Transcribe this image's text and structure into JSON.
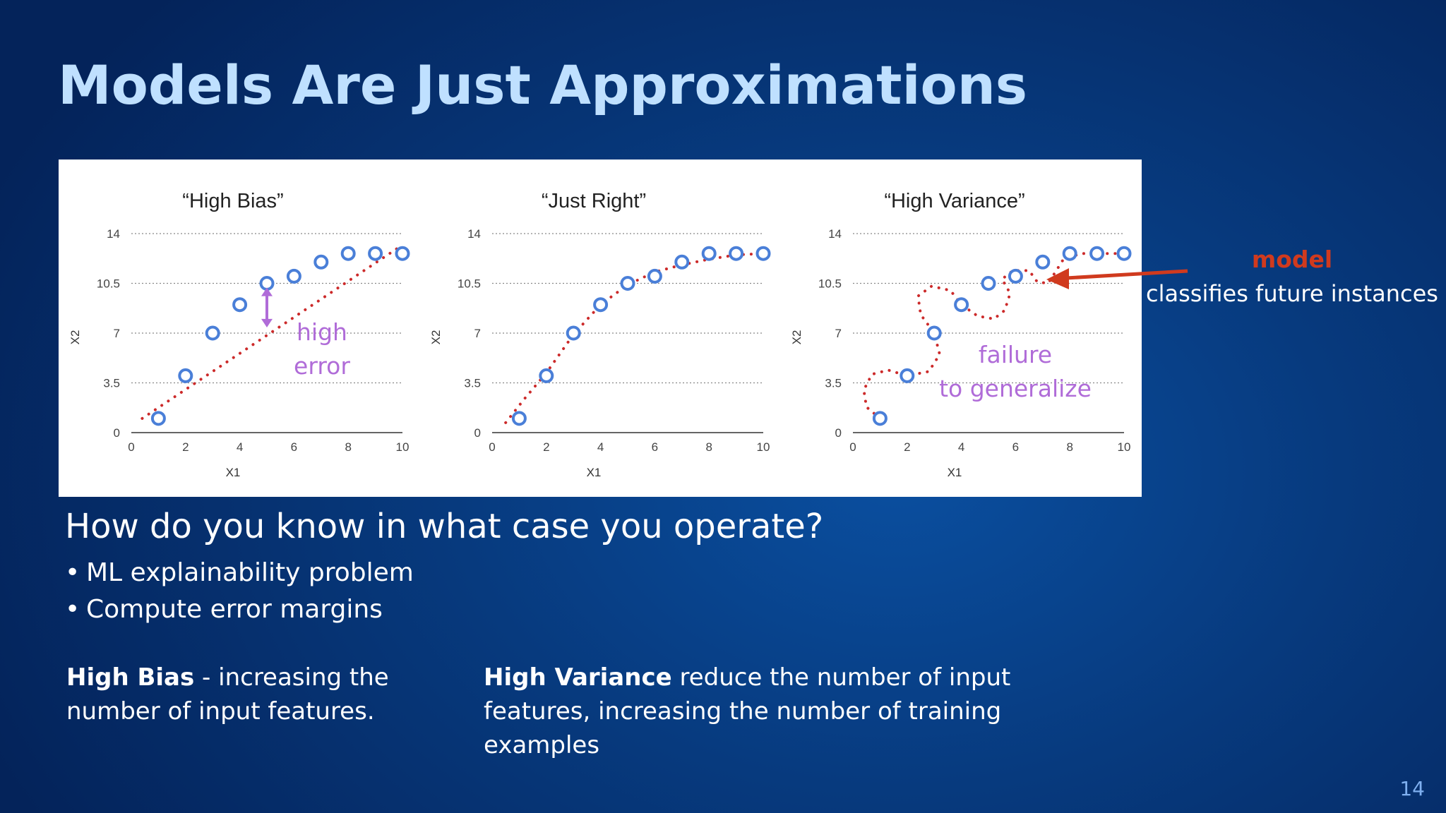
{
  "slide": {
    "title": "Models Are Just Approximations",
    "question": "How do you know in what case you operate?",
    "bullets": [
      "ML explainability problem",
      "Compute error margins"
    ],
    "high_bias_label": "High Bias",
    "high_bias_text": " -  increasing the number of input features.",
    "high_variance_label": "High Variance",
    "high_variance_text": " reduce the number of input features, increasing the number of training examples",
    "page_number": "14",
    "model_label": "model",
    "model_caption": "classifies future instances"
  },
  "colors": {
    "point": "#4a7fd8",
    "fit": "#cc2a2a",
    "annotation": "#b06cd8",
    "model": "#d03a1e"
  },
  "chart_data": [
    {
      "type": "scatter",
      "title": "“High Bias”",
      "xlabel": "X1",
      "ylabel": "X2",
      "xlim": [
        0,
        10
      ],
      "ylim": [
        0,
        14
      ],
      "xticks": [
        "0",
        "2",
        "4",
        "6",
        "8",
        "10"
      ],
      "yticks": [
        "0",
        "3.5",
        "7",
        "10.5",
        "14"
      ],
      "grid": true,
      "points": [
        [
          1,
          1
        ],
        [
          2,
          4
        ],
        [
          3,
          7
        ],
        [
          4,
          9
        ],
        [
          5,
          10.5
        ],
        [
          6,
          11
        ],
        [
          7,
          12
        ],
        [
          8,
          12.6
        ],
        [
          9,
          12.6
        ],
        [
          10,
          12.6
        ]
      ],
      "fit": [
        [
          0.4,
          1
        ],
        [
          10,
          13.2
        ]
      ],
      "annotation": [
        "high",
        "error"
      ]
    },
    {
      "type": "scatter",
      "title": "“Just Right”",
      "xlabel": "X1",
      "ylabel": "X2",
      "xlim": [
        0,
        10
      ],
      "ylim": [
        0,
        14
      ],
      "xticks": [
        "0",
        "2",
        "4",
        "6",
        "8",
        "10"
      ],
      "yticks": [
        "0",
        "3.5",
        "7",
        "10.5",
        "14"
      ],
      "grid": true,
      "points": [
        [
          1,
          1
        ],
        [
          2,
          4
        ],
        [
          3,
          7
        ],
        [
          4,
          9
        ],
        [
          5,
          10.5
        ],
        [
          6,
          11
        ],
        [
          7,
          12
        ],
        [
          8,
          12.6
        ],
        [
          9,
          12.6
        ],
        [
          10,
          12.6
        ]
      ],
      "fit": [
        [
          0.5,
          0.7
        ],
        [
          1.2,
          2.4
        ],
        [
          2,
          4.2
        ],
        [
          3,
          6.9
        ],
        [
          4,
          9
        ],
        [
          5,
          10.4
        ],
        [
          6,
          11.3
        ],
        [
          7,
          11.8
        ],
        [
          8,
          12.2
        ],
        [
          9,
          12.5
        ],
        [
          10,
          12.6
        ]
      ],
      "annotation": []
    },
    {
      "type": "scatter",
      "title": "“High Variance”",
      "xlabel": "X1",
      "ylabel": "X2",
      "xlim": [
        0,
        10
      ],
      "ylim": [
        0,
        14
      ],
      "xticks": [
        "0",
        "2",
        "4",
        "6",
        "8",
        "10"
      ],
      "yticks": [
        "0",
        "3.5",
        "7",
        "10.5",
        "14"
      ],
      "grid": true,
      "points": [
        [
          1,
          1
        ],
        [
          2,
          4
        ],
        [
          3,
          7
        ],
        [
          4,
          9
        ],
        [
          5,
          10.5
        ],
        [
          6,
          11
        ],
        [
          7,
          12
        ],
        [
          8,
          12.6
        ],
        [
          9,
          12.6
        ],
        [
          10,
          12.6
        ]
      ],
      "fit": [
        [
          1,
          1
        ],
        [
          0.5,
          1.8
        ],
        [
          0.4,
          3
        ],
        [
          0.7,
          4.1
        ],
        [
          1.3,
          4.4
        ],
        [
          2,
          4
        ],
        [
          2.8,
          4.3
        ],
        [
          3.2,
          5.5
        ],
        [
          3,
          7
        ],
        [
          2.5,
          8.3
        ],
        [
          2.4,
          9.6
        ],
        [
          2.9,
          10.3
        ],
        [
          3.6,
          10
        ],
        [
          4,
          9
        ],
        [
          4.6,
          8.2
        ],
        [
          5.2,
          8
        ],
        [
          5.6,
          8.6
        ],
        [
          5.8,
          9.8
        ],
        [
          5.5,
          10.8
        ],
        [
          5.9,
          11.4
        ],
        [
          6.5,
          11.4
        ],
        [
          6.8,
          10.6
        ],
        [
          7.2,
          10.5
        ],
        [
          7.5,
          11.4
        ],
        [
          7.8,
          12.3
        ],
        [
          8.5,
          12.6
        ],
        [
          9.5,
          12.6
        ],
        [
          10,
          12.6
        ]
      ],
      "annotation": [
        "failure",
        "to generalize"
      ]
    }
  ]
}
